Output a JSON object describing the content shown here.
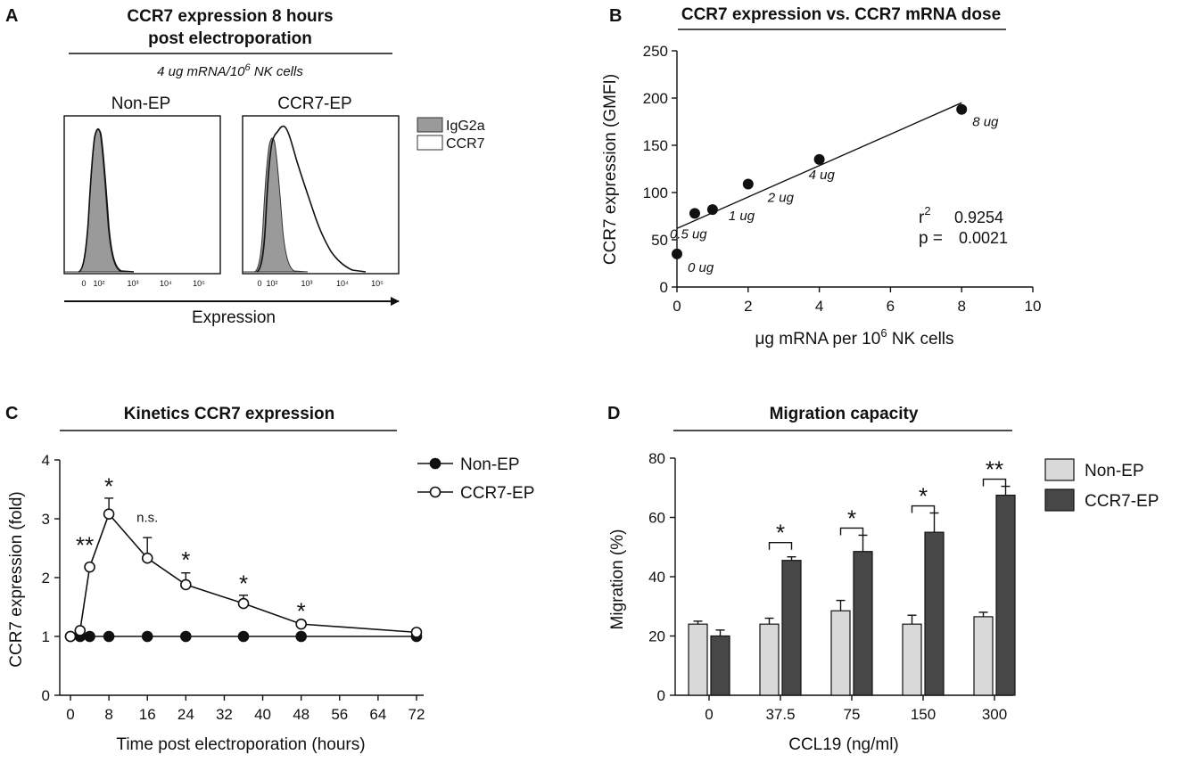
{
  "panels": {
    "A": {
      "letter": "A",
      "title_line1": "CCR7 expression 8 hours",
      "title_line2": "post electroporation",
      "subtitle_pre": "4 ug mRNA/10",
      "subtitle_sup": "6",
      "subtitle_post": " NK cells",
      "histogram_left_label": "Non-EP",
      "histogram_right_label": "CCR7-EP",
      "legend": [
        {
          "label": "IgG2a",
          "color": "#9a9a9a"
        },
        {
          "label": "CCR7",
          "color": "#ffffff"
        }
      ],
      "tick_labels": [
        "0",
        "10²",
        "10³",
        "10⁴",
        "10⁵"
      ],
      "xlabel": "Expression"
    },
    "B": {
      "letter": "B",
      "r2_label": "r",
      "r2_sup": "2",
      "r2_value": "0.9254",
      "p_label": "p =",
      "p_value": "0.0021",
      "xlabel_pre": "μg mRNA per 10",
      "xlabel_sup": "6",
      "xlabel_post": " NK cells"
    },
    "C": {
      "letter": "C"
    },
    "D": {
      "letter": "D"
    }
  },
  "chart_data": [
    {
      "id": "B",
      "type": "scatter",
      "title": "CCR7 expression vs. CCR7 mRNA dose",
      "xlabel": "μg mRNA per 10^6 NK cells",
      "ylabel": "CCR7 expression (GMFI)",
      "xlim": [
        0,
        10
      ],
      "ylim": [
        0,
        250
      ],
      "xticks": [
        0,
        2,
        4,
        6,
        8,
        10
      ],
      "yticks": [
        0,
        50,
        100,
        150,
        200,
        250
      ],
      "points": [
        {
          "x": 0,
          "y": 35,
          "label": "0 ug"
        },
        {
          "x": 0.5,
          "y": 78,
          "label": "0.5 ug"
        },
        {
          "x": 1,
          "y": 82,
          "label": "1 ug"
        },
        {
          "x": 2,
          "y": 109,
          "label": "2 ug"
        },
        {
          "x": 4,
          "y": 135,
          "label": "4 ug"
        },
        {
          "x": 8,
          "y": 188,
          "label": "8 ug"
        }
      ],
      "fit_line": {
        "x": [
          0,
          8
        ],
        "y": [
          62,
          195
        ]
      },
      "annotations": {
        "r2": "0.9254",
        "p": "0.0021"
      }
    },
    {
      "id": "C",
      "type": "line",
      "title": "Kinetics CCR7 expression",
      "xlabel": "Time post electroporation (hours)",
      "ylabel": "CCR7 expression (fold)",
      "xlim": [
        -1,
        72
      ],
      "ylim": [
        0,
        4
      ],
      "xticks": [
        0,
        8,
        16,
        24,
        32,
        40,
        48,
        56,
        64,
        72
      ],
      "yticks": [
        0,
        1,
        2,
        3,
        4
      ],
      "series": [
        {
          "name": "Non-EP",
          "marker": "filled",
          "x": [
            0,
            2,
            4,
            8,
            16,
            24,
            36,
            48,
            72
          ],
          "y": [
            1,
            1,
            1,
            1,
            1,
            1,
            1,
            1,
            1
          ],
          "err": []
        },
        {
          "name": "CCR7-EP",
          "marker": "open",
          "x": [
            0,
            2,
            4,
            8,
            16,
            24,
            36,
            48,
            72
          ],
          "y": [
            1,
            1.1,
            2.18,
            3.08,
            2.33,
            1.88,
            1.56,
            1.21,
            1.07
          ],
          "err": [
            0,
            0,
            0,
            0.27,
            0.35,
            0.2,
            0.14,
            0,
            0
          ]
        }
      ],
      "significance": [
        {
          "x": 3,
          "y": 2.6,
          "label": "**"
        },
        {
          "x": 8,
          "y": 3.6,
          "label": "*"
        },
        {
          "x": 16,
          "y": 2.95,
          "label": "n.s."
        },
        {
          "x": 24,
          "y": 2.35,
          "label": "*"
        },
        {
          "x": 36,
          "y": 1.95,
          "label": "*"
        },
        {
          "x": 48,
          "y": 1.48,
          "label": "*"
        }
      ]
    },
    {
      "id": "D",
      "type": "bar",
      "title": "Migration capacity",
      "xlabel": "CCL19 (ng/ml)",
      "ylabel": "Migration (%)",
      "ylim": [
        0,
        80
      ],
      "yticks": [
        0,
        20,
        40,
        60,
        80
      ],
      "categories": [
        "0",
        "37.5",
        "75",
        "150",
        "300"
      ],
      "series": [
        {
          "name": "Non-EP",
          "color": "#d9d9d9",
          "values": [
            24,
            24,
            28.5,
            24,
            26.5
          ],
          "err": [
            1,
            2,
            3.5,
            3,
            1.5
          ]
        },
        {
          "name": "CCR7-EP",
          "color": "#474747",
          "values": [
            20,
            45.5,
            48.5,
            55,
            67.5
          ],
          "err": [
            2,
            1.2,
            5.5,
            6.5,
            3
          ]
        }
      ],
      "significance": [
        {
          "category_index": 1,
          "label": "*"
        },
        {
          "category_index": 2,
          "label": "*"
        },
        {
          "category_index": 3,
          "label": "*"
        },
        {
          "category_index": 4,
          "label": "**"
        }
      ]
    }
  ]
}
